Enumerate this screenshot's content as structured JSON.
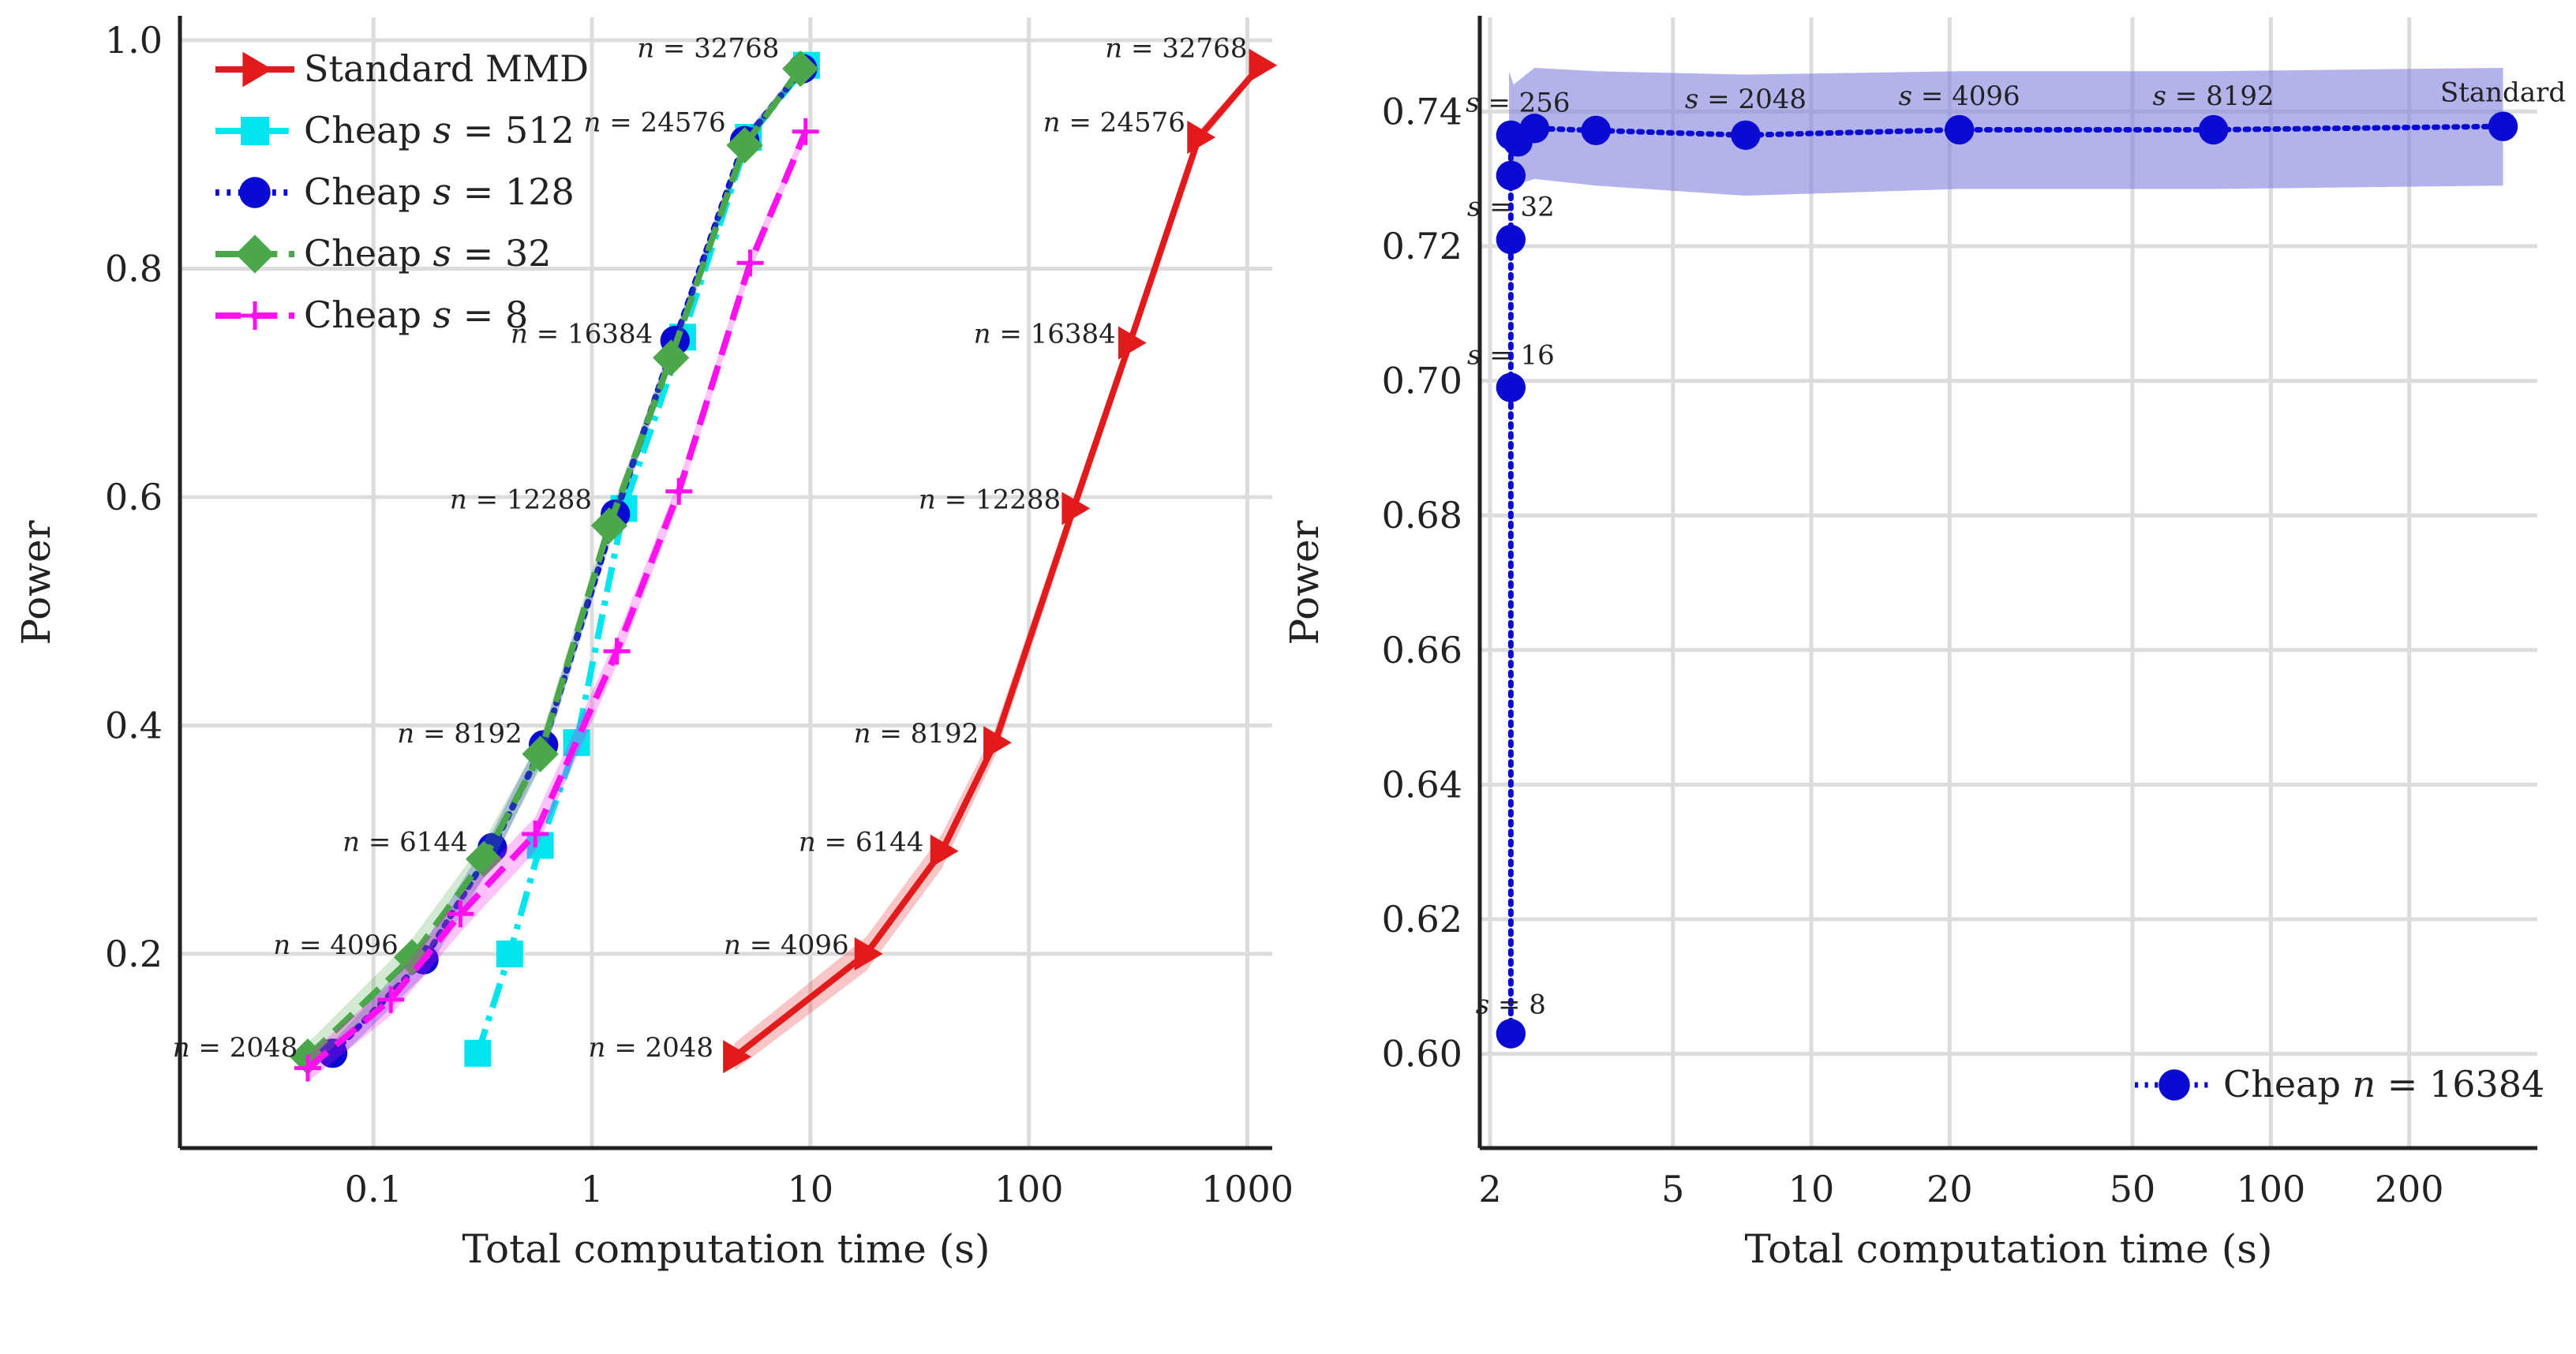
{
  "chart_data": [
    {
      "type": "line",
      "xlabel": "Total computation time (s)",
      "ylabel": "Power",
      "xscale": "log",
      "xlim": [
        0.013,
        1300
      ],
      "ylim": [
        0.03,
        1.02
      ],
      "xticks": [
        {
          "value": 0.1,
          "label": "0.1"
        },
        {
          "value": 1,
          "label": "1"
        },
        {
          "value": 10,
          "label": "10"
        },
        {
          "value": 100,
          "label": "100"
        },
        {
          "value": 1000,
          "label": "1000"
        }
      ],
      "yticks": [
        {
          "value": 0.2,
          "label": "0.2"
        },
        {
          "value": 0.4,
          "label": "0.4"
        },
        {
          "value": 0.6,
          "label": "0.6"
        },
        {
          "value": 0.8,
          "label": "0.8"
        },
        {
          "value": 1.0,
          "label": "1.0"
        }
      ],
      "grid": true,
      "legend_position": "top-left",
      "series": [
        {
          "name_text": "Standard MMD",
          "name_math": "",
          "color": "#e31a1c",
          "linestyle": "solid",
          "marker": "triangle-right",
          "x": [
            4.5,
            18,
            40,
            70,
            160,
            290,
            600,
            1150
          ],
          "y": [
            0.11,
            0.2,
            0.29,
            0.385,
            0.59,
            0.735,
            0.915,
            0.978
          ],
          "band": [
            0.012,
            0.015,
            0.015,
            0.012,
            0.01,
            0.008,
            0.006,
            0.004
          ]
        },
        {
          "name_text": "Cheap ",
          "name_math": "s = 512",
          "color": "#00e5ee",
          "linestyle": "dashdot",
          "marker": "square",
          "x": [
            0.3,
            0.42,
            0.58,
            0.85,
            1.4,
            2.6,
            5.2,
            9.6
          ],
          "y": [
            0.113,
            0.2,
            0.295,
            0.385,
            0.59,
            0.74,
            0.915,
            0.978
          ],
          "band": [
            0,
            0,
            0,
            0,
            0,
            0,
            0,
            0
          ]
        },
        {
          "name_text": "Cheap ",
          "name_math": "s = 128",
          "color": "#0a0ad2",
          "linestyle": "dotted",
          "marker": "circle",
          "x": [
            0.065,
            0.17,
            0.35,
            0.6,
            1.28,
            2.4,
            5.0,
            9.2
          ],
          "y": [
            0.113,
            0.195,
            0.293,
            0.383,
            0.585,
            0.737,
            0.912,
            0.975
          ],
          "band": [
            0.01,
            0.014,
            0.014,
            0.012,
            0.01,
            0.008,
            0.006,
            0.004
          ]
        },
        {
          "name_text": "Cheap ",
          "name_math": "s = 32",
          "color": "#4aa84a",
          "linestyle": "dashed",
          "marker": "diamond",
          "x": [
            0.05,
            0.15,
            0.32,
            0.58,
            1.2,
            2.3,
            5.0,
            9.0
          ],
          "y": [
            0.11,
            0.197,
            0.283,
            0.375,
            0.575,
            0.722,
            0.908,
            0.975
          ],
          "band": [
            0.012,
            0.016,
            0.016,
            0.013,
            0.01,
            0.008,
            0.006,
            0.004
          ]
        },
        {
          "name_text": "Cheap ",
          "name_math": "s = 8",
          "color": "#ff10ee",
          "linestyle": "dashed",
          "marker": "plus",
          "x": [
            0.05,
            0.12,
            0.25,
            0.55,
            1.3,
            2.5,
            5.3,
            9.5
          ],
          "y": [
            0.1,
            0.16,
            0.235,
            0.305,
            0.465,
            0.605,
            0.805,
            0.92
          ],
          "band": [
            0.012,
            0.014,
            0.016,
            0.015,
            0.012,
            0.01,
            0.008,
            0.006
          ]
        }
      ],
      "annotations": [
        {
          "text": "n = 2048",
          "x": 0.045,
          "y": 0.11,
          "anchor": "end"
        },
        {
          "text": "n = 4096",
          "x": 0.13,
          "y": 0.2,
          "anchor": "end"
        },
        {
          "text": "n = 6144",
          "x": 0.27,
          "y": 0.29,
          "anchor": "end"
        },
        {
          "text": "n = 8192",
          "x": 0.48,
          "y": 0.385,
          "anchor": "end"
        },
        {
          "text": "n = 12288",
          "x": 1.0,
          "y": 0.59,
          "anchor": "end"
        },
        {
          "text": "n = 16384",
          "x": 1.9,
          "y": 0.735,
          "anchor": "end"
        },
        {
          "text": "n = 24576",
          "x": 4.1,
          "y": 0.92,
          "anchor": "end"
        },
        {
          "text": "n = 32768",
          "x": 7.2,
          "y": 0.985,
          "anchor": "end"
        },
        {
          "text": "n = 2048",
          "x": 3.6,
          "y": 0.11,
          "anchor": "end"
        },
        {
          "text": "n = 4096",
          "x": 15,
          "y": 0.2,
          "anchor": "end"
        },
        {
          "text": "n = 6144",
          "x": 33,
          "y": 0.29,
          "anchor": "end"
        },
        {
          "text": "n = 8192",
          "x": 59,
          "y": 0.385,
          "anchor": "end"
        },
        {
          "text": "n = 12288",
          "x": 140,
          "y": 0.59,
          "anchor": "end"
        },
        {
          "text": "n = 16384",
          "x": 250,
          "y": 0.735,
          "anchor": "end"
        },
        {
          "text": "n = 24576",
          "x": 520,
          "y": 0.92,
          "anchor": "end"
        },
        {
          "text": "n = 32768",
          "x": 1000,
          "y": 0.985,
          "anchor": "end"
        }
      ]
    },
    {
      "type": "line",
      "xlabel": "Total computation time (s)",
      "ylabel": "Power",
      "xscale": "log",
      "xlim": [
        1.9,
        380
      ],
      "ylim": [
        0.586,
        0.754
      ],
      "xticks": [
        {
          "value": 2,
          "label": "2"
        },
        {
          "value": 5,
          "label": "5"
        },
        {
          "value": 10,
          "label": "10"
        },
        {
          "value": 20,
          "label": "20"
        },
        {
          "value": 50,
          "label": "50"
        },
        {
          "value": 100,
          "label": "100"
        },
        {
          "value": 200,
          "label": "200"
        }
      ],
      "yticks": [
        {
          "value": 0.6,
          "label": "0.60"
        },
        {
          "value": 0.62,
          "label": "0.62"
        },
        {
          "value": 0.64,
          "label": "0.64"
        },
        {
          "value": 0.66,
          "label": "0.66"
        },
        {
          "value": 0.68,
          "label": "0.68"
        },
        {
          "value": 0.7,
          "label": "0.70"
        },
        {
          "value": 0.72,
          "label": "0.72"
        },
        {
          "value": 0.74,
          "label": "0.74"
        }
      ],
      "grid": true,
      "legend_position": "bottom-right",
      "series": [
        {
          "name_text": "Cheap ",
          "name_math": "n = 16384",
          "color": "#0a0ad2",
          "linestyle": "dotted",
          "marker": "circle",
          "x": [
            2.22,
            2.22,
            2.22,
            2.22,
            2.22,
            2.3,
            2.5,
            3.4,
            7.2,
            21,
            75,
            320
          ],
          "y": [
            0.603,
            0.699,
            0.721,
            0.7305,
            0.7365,
            0.7355,
            0.7375,
            0.7372,
            0.7365,
            0.7373,
            0.7373,
            0.7378
          ]
        }
      ],
      "band": {
        "x": [
          2.2,
          2.2,
          2.25,
          2.5,
          3.4,
          7.2,
          21,
          75,
          320
        ],
        "lo": [
          0.593,
          0.728,
          0.729,
          0.73,
          0.729,
          0.7275,
          0.7285,
          0.7285,
          0.729
        ],
        "hi": [
          0.7305,
          0.746,
          0.744,
          0.7465,
          0.746,
          0.7455,
          0.746,
          0.746,
          0.7465
        ],
        "color": "#8080dd"
      },
      "annotations": [
        {
          "text": "s = 8",
          "x": 2.22,
          "y": 0.606,
          "anchor": "middle"
        },
        {
          "text": "s = 16",
          "x": 2.22,
          "y": 0.7025,
          "anchor": "middle"
        },
        {
          "text": "s = 32",
          "x": 2.22,
          "y": 0.7245,
          "anchor": "middle"
        },
        {
          "text": "s = 256",
          "x": 2.3,
          "y": 0.74,
          "anchor": "middle"
        },
        {
          "text": "s = 2048",
          "x": 7.2,
          "y": 0.7405,
          "anchor": "middle"
        },
        {
          "text": "s = 4096",
          "x": 21,
          "y": 0.741,
          "anchor": "middle"
        },
        {
          "text": "s = 8192",
          "x": 75,
          "y": 0.741,
          "anchor": "middle"
        },
        {
          "text": "Standard",
          "x": 320,
          "y": 0.7415,
          "anchor": "middle",
          "plain": true
        }
      ]
    }
  ]
}
